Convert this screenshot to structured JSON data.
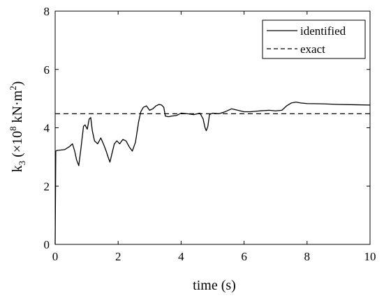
{
  "chart_data": {
    "type": "line",
    "xlabel": "time  (s)",
    "ylabel": {
      "prefix": "k",
      "subscript": "3",
      "open": " (×10",
      "exp": "8",
      "unit": " kN·m",
      "unit_exp": "2",
      "close": ")"
    },
    "xlim": [
      0,
      10
    ],
    "ylim": [
      0,
      8
    ],
    "x_ticks": [
      0,
      2,
      4,
      6,
      8,
      10
    ],
    "y_ticks": [
      0,
      2,
      4,
      6,
      8
    ],
    "x_tick_labels": [
      "0",
      "2",
      "4",
      "6",
      "8",
      "10"
    ],
    "y_tick_labels": [
      "0",
      "2",
      "4",
      "6",
      "8"
    ],
    "grid": false,
    "legend_position": "top-right",
    "series": [
      {
        "name": "identified",
        "style": "solid",
        "color": "#000000",
        "x": [
          0.0,
          0.02,
          0.05,
          0.3,
          0.45,
          0.55,
          0.62,
          0.68,
          0.75,
          0.82,
          0.9,
          0.95,
          1.02,
          1.08,
          1.13,
          1.18,
          1.25,
          1.35,
          1.45,
          1.55,
          1.62,
          1.68,
          1.74,
          1.8,
          1.88,
          1.96,
          2.05,
          2.15,
          2.25,
          2.35,
          2.45,
          2.55,
          2.65,
          2.72,
          2.8,
          2.9,
          3.0,
          3.1,
          3.2,
          3.3,
          3.38,
          3.45,
          3.5,
          3.6,
          3.7,
          3.85,
          4.0,
          4.2,
          4.4,
          4.6,
          4.7,
          4.76,
          4.8,
          4.85,
          4.9,
          5.0,
          5.2,
          5.4,
          5.6,
          5.8,
          6.0,
          6.2,
          6.5,
          6.8,
          7.0,
          7.2,
          7.35,
          7.5,
          7.65,
          7.8,
          8.0,
          8.5,
          9.0,
          9.5,
          10.0
        ],
        "y": [
          0.0,
          3.2,
          3.22,
          3.25,
          3.35,
          3.45,
          3.2,
          2.9,
          2.7,
          3.3,
          4.05,
          4.1,
          3.95,
          4.3,
          4.35,
          3.9,
          3.55,
          3.45,
          3.65,
          3.4,
          3.2,
          3.0,
          2.82,
          3.1,
          3.45,
          3.55,
          3.45,
          3.6,
          3.55,
          3.35,
          3.2,
          3.5,
          4.2,
          4.55,
          4.7,
          4.75,
          4.6,
          4.65,
          4.75,
          4.8,
          4.78,
          4.7,
          4.4,
          4.38,
          4.4,
          4.42,
          4.5,
          4.48,
          4.45,
          4.5,
          4.3,
          4.0,
          3.9,
          4.05,
          4.45,
          4.5,
          4.48,
          4.55,
          4.65,
          4.6,
          4.55,
          4.55,
          4.58,
          4.6,
          4.58,
          4.6,
          4.75,
          4.85,
          4.88,
          4.85,
          4.83,
          4.82,
          4.8,
          4.79,
          4.78
        ]
      },
      {
        "name": "exact",
        "style": "dashed",
        "color": "#000000",
        "x": [
          0,
          10
        ],
        "y": [
          4.48,
          4.48
        ]
      }
    ]
  }
}
